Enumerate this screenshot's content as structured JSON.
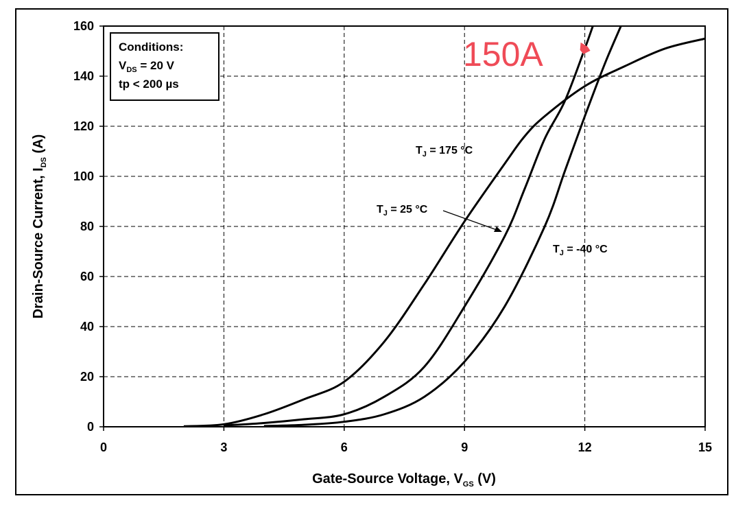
{
  "chart_data": {
    "type": "line",
    "xlabel": "Gate-Source Voltage, V",
    "xlabel_sub": "GS",
    "xlabel_suffix": " (V)",
    "ylabel": "Drain-Source Current, I",
    "ylabel_sub": "DS",
    "ylabel_suffix": " (A)",
    "xlim": [
      0,
      15
    ],
    "ylim": [
      0,
      160
    ],
    "x_ticks": [
      0,
      3,
      6,
      9,
      12,
      15
    ],
    "y_ticks": [
      0,
      20,
      40,
      60,
      80,
      100,
      120,
      140,
      160
    ],
    "grid": "dashed",
    "series": [
      {
        "name": "T = 175 °C",
        "label_main": "T",
        "label_sub": "J",
        "label_rest": " = 175 °C",
        "x": [
          2,
          3,
          4,
          5,
          6,
          7,
          8,
          9,
          10,
          10.5,
          11,
          12,
          13,
          14,
          15
        ],
        "y": [
          0.2,
          1,
          5,
          11,
          18,
          34,
          57,
          82,
          105,
          116,
          124,
          136,
          144,
          151,
          155
        ]
      },
      {
        "name": "T = 25 °C",
        "label_main": "T",
        "label_sub": "J",
        "label_rest": " = 25 °C",
        "x": [
          3,
          4,
          5,
          6,
          7,
          8,
          9,
          10,
          10.5,
          11,
          11.5,
          12,
          12.2
        ],
        "y": [
          0.5,
          1.5,
          3,
          5,
          12,
          24,
          48,
          76,
          95,
          115,
          130,
          151,
          160
        ]
      },
      {
        "name": "T = -40 °C",
        "label_main": "T",
        "label_sub": "J",
        "label_rest": " = -40 °C",
        "x": [
          4,
          5,
          6,
          7,
          8,
          9,
          10,
          11,
          11.5,
          12,
          12.5,
          12.9
        ],
        "y": [
          0.3,
          0.8,
          2,
          5,
          12,
          26,
          48,
          80,
          102,
          124,
          145,
          160
        ]
      }
    ],
    "annotations": [
      {
        "text": "150A",
        "x": 12,
        "y": 151,
        "color": "#ef4b57"
      }
    ]
  },
  "conditions": {
    "title": "Conditions:",
    "line1_main": "V",
    "line1_sub": "DS",
    "line1_rest": " = 20 V",
    "line2": "tp < 200 µs"
  }
}
